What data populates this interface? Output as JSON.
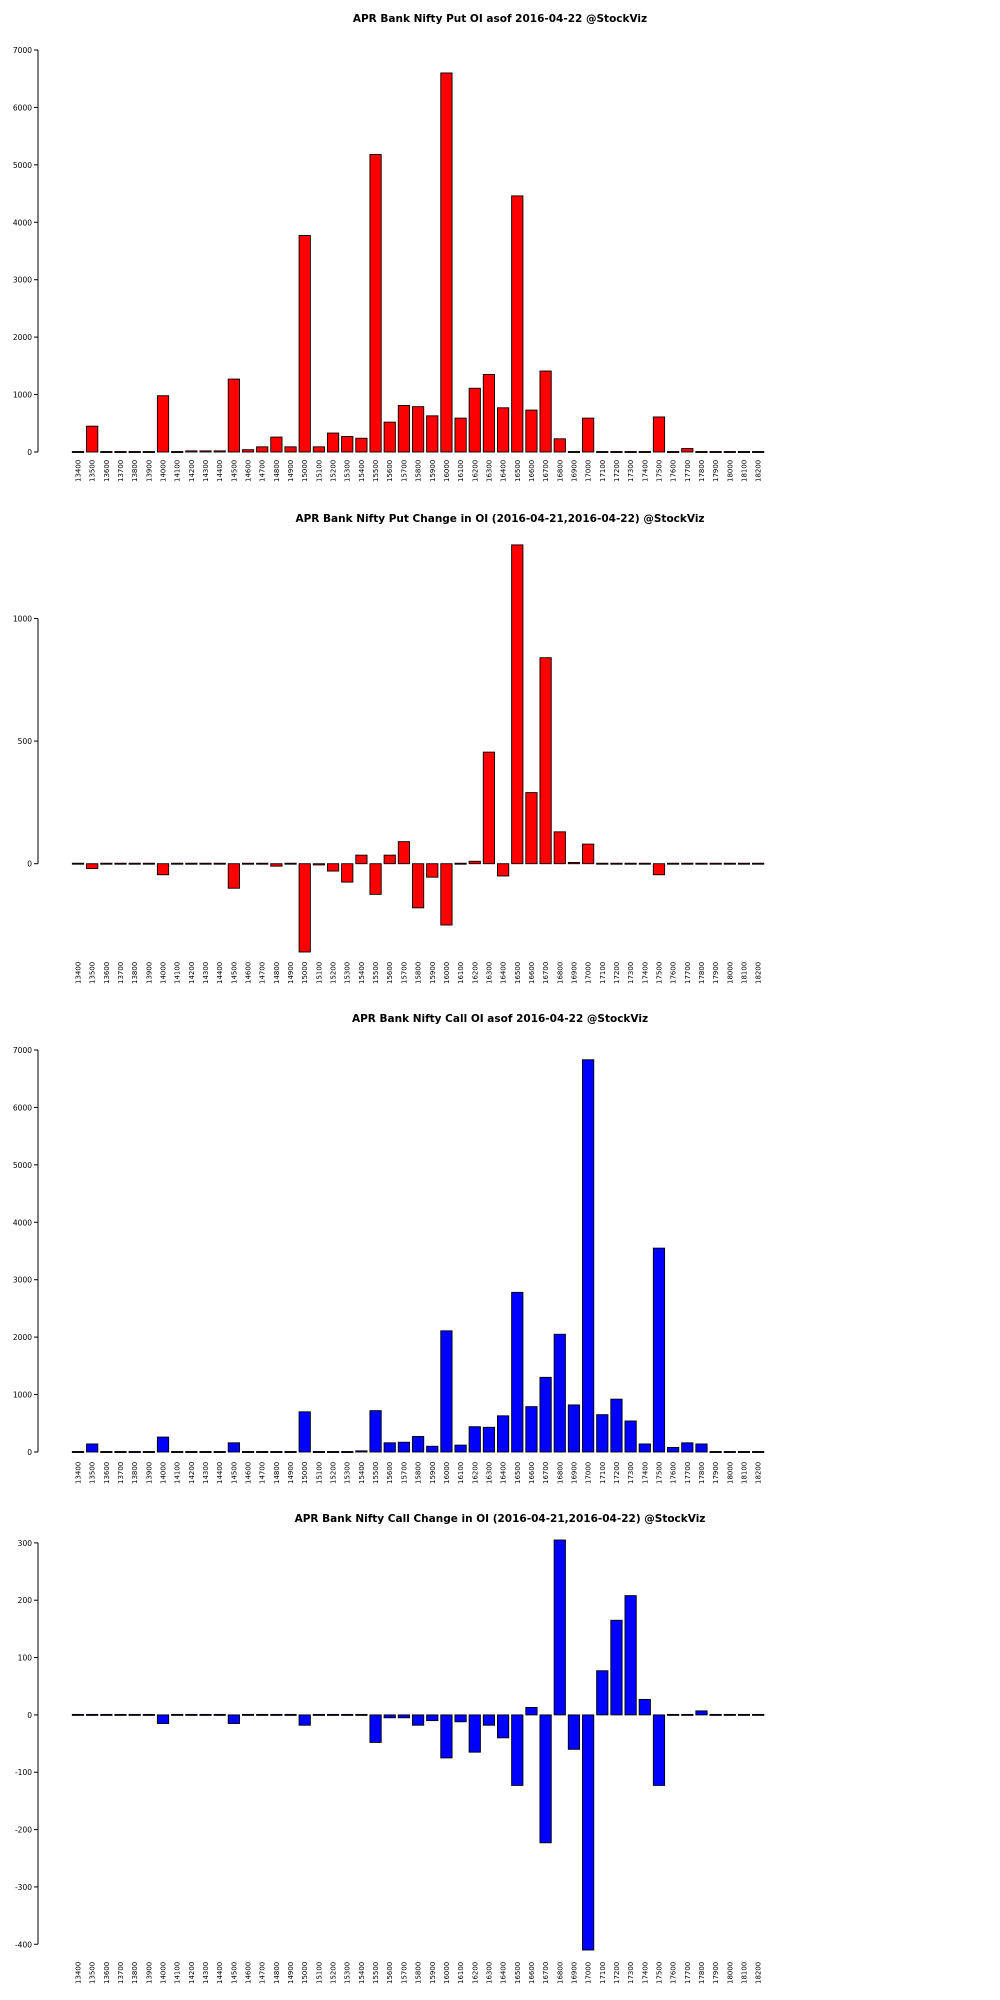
{
  "chart_data": [
    {
      "type": "bar",
      "title": "APR Bank Nifty Put OI asof 2016-04-22 @StockViz",
      "color": "#ff0000",
      "xlabel": "",
      "ylabel": "",
      "categories": [
        "13400",
        "13500",
        "13600",
        "13700",
        "13800",
        "13900",
        "14000",
        "14100",
        "14200",
        "14300",
        "14400",
        "14500",
        "14600",
        "14700",
        "14800",
        "14900",
        "15000",
        "15100",
        "15200",
        "15300",
        "15400",
        "15500",
        "15600",
        "15700",
        "15800",
        "15900",
        "16000",
        "16100",
        "16200",
        "16300",
        "16400",
        "16500",
        "16600",
        "16700",
        "16800",
        "16900",
        "17000",
        "17100",
        "17200",
        "17300",
        "17400",
        "17500",
        "17600",
        "17700",
        "17800",
        "17900",
        "18000",
        "18100",
        "18200"
      ],
      "values": [
        0,
        450,
        0,
        0,
        0,
        0,
        980,
        0,
        20,
        20,
        20,
        1270,
        40,
        90,
        260,
        90,
        3770,
        90,
        330,
        270,
        240,
        5180,
        520,
        810,
        790,
        630,
        6600,
        590,
        1110,
        1350,
        770,
        4460,
        730,
        1410,
        230,
        0,
        590,
        0,
        0,
        0,
        0,
        610,
        0,
        60,
        0,
        0,
        0,
        0,
        0
      ],
      "ylim": [
        0,
        7000
      ],
      "yticks": [
        0,
        1000,
        2000,
        3000,
        4000,
        5000,
        6000,
        7000
      ]
    },
    {
      "type": "bar",
      "title": "APR Bank Nifty Put Change in OI (2016-04-21,2016-04-22) @StockViz",
      "color": "#ff0000",
      "xlabel": "",
      "ylabel": "",
      "categories": [
        "13400",
        "13500",
        "13600",
        "13700",
        "13800",
        "13900",
        "14000",
        "14100",
        "14200",
        "14300",
        "14400",
        "14500",
        "14600",
        "14700",
        "14800",
        "14900",
        "15000",
        "15100",
        "15200",
        "15300",
        "15400",
        "15500",
        "15600",
        "15700",
        "15800",
        "15900",
        "16000",
        "16100",
        "16200",
        "16300",
        "16400",
        "16500",
        "16600",
        "16700",
        "16800",
        "16900",
        "17000",
        "17100",
        "17200",
        "17300",
        "17400",
        "17500",
        "17600",
        "17700",
        "17800",
        "17900",
        "18000",
        "18100",
        "18200"
      ],
      "values": [
        0,
        -20,
        0,
        0,
        0,
        0,
        -45,
        0,
        0,
        0,
        0,
        -100,
        0,
        0,
        -10,
        0,
        -360,
        -5,
        -30,
        -75,
        35,
        -125,
        35,
        90,
        -180,
        -55,
        -250,
        0,
        10,
        455,
        -50,
        1300,
        290,
        840,
        130,
        5,
        80,
        0,
        0,
        0,
        0,
        -45,
        0,
        0,
        0,
        0,
        0,
        0,
        0
      ],
      "ylim": [
        -360,
        1320
      ],
      "yticks": [
        0,
        500,
        1000
      ]
    },
    {
      "type": "bar",
      "title": "APR Bank Nifty Call OI asof 2016-04-22 @StockViz",
      "color": "#0000ff",
      "xlabel": "",
      "ylabel": "",
      "categories": [
        "13400",
        "13500",
        "13600",
        "13700",
        "13800",
        "13900",
        "14000",
        "14100",
        "14200",
        "14300",
        "14400",
        "14500",
        "14600",
        "14700",
        "14800",
        "14900",
        "15000",
        "15100",
        "15200",
        "15300",
        "15400",
        "15500",
        "15600",
        "15700",
        "15800",
        "15900",
        "16000",
        "16100",
        "16200",
        "16300",
        "16400",
        "16500",
        "16600",
        "16700",
        "16800",
        "16900",
        "17000",
        "17100",
        "17200",
        "17300",
        "17400",
        "17500",
        "17600",
        "17700",
        "17800",
        "17900",
        "18000",
        "18100",
        "18200"
      ],
      "values": [
        0,
        140,
        0,
        0,
        0,
        0,
        260,
        0,
        0,
        0,
        0,
        160,
        0,
        0,
        0,
        0,
        700,
        0,
        0,
        0,
        20,
        720,
        160,
        170,
        270,
        100,
        2110,
        120,
        440,
        430,
        630,
        2780,
        790,
        1300,
        2050,
        820,
        6830,
        650,
        920,
        540,
        140,
        3550,
        80,
        160,
        140,
        0,
        0,
        0,
        0
      ],
      "ylim": [
        0,
        7000
      ],
      "yticks": [
        0,
        1000,
        2000,
        3000,
        4000,
        5000,
        6000,
        7000
      ]
    },
    {
      "type": "bar",
      "title": "APR Bank Nifty Call Change in OI (2016-04-21,2016-04-22) @StockViz",
      "color": "#0000ff",
      "xlabel": "",
      "ylabel": "",
      "categories": [
        "13400",
        "13500",
        "13600",
        "13700",
        "13800",
        "13900",
        "14000",
        "14100",
        "14200",
        "14300",
        "14400",
        "14500",
        "14600",
        "14700",
        "14800",
        "14900",
        "15000",
        "15100",
        "15200",
        "15300",
        "15400",
        "15500",
        "15600",
        "15700",
        "15800",
        "15900",
        "16000",
        "16100",
        "16200",
        "16300",
        "16400",
        "16500",
        "16600",
        "16700",
        "16800",
        "16900",
        "17000",
        "17100",
        "17200",
        "17300",
        "17400",
        "17500",
        "17600",
        "17700",
        "17800",
        "17900",
        "18000",
        "18100",
        "18200"
      ],
      "values": [
        0,
        0,
        0,
        0,
        0,
        0,
        -15,
        0,
        0,
        0,
        0,
        -15,
        0,
        0,
        0,
        0,
        -18,
        0,
        0,
        0,
        0,
        -48,
        -5,
        -5,
        -18,
        -10,
        -75,
        -12,
        -65,
        -18,
        -40,
        -123,
        13,
        -223,
        305,
        -60,
        -410,
        77,
        165,
        208,
        27,
        -123,
        0,
        0,
        7,
        0,
        0,
        0,
        0
      ],
      "ylim": [
        -410,
        305
      ],
      "yticks": [
        -400,
        -300,
        -200,
        -100,
        0,
        100,
        200,
        300
      ]
    }
  ]
}
